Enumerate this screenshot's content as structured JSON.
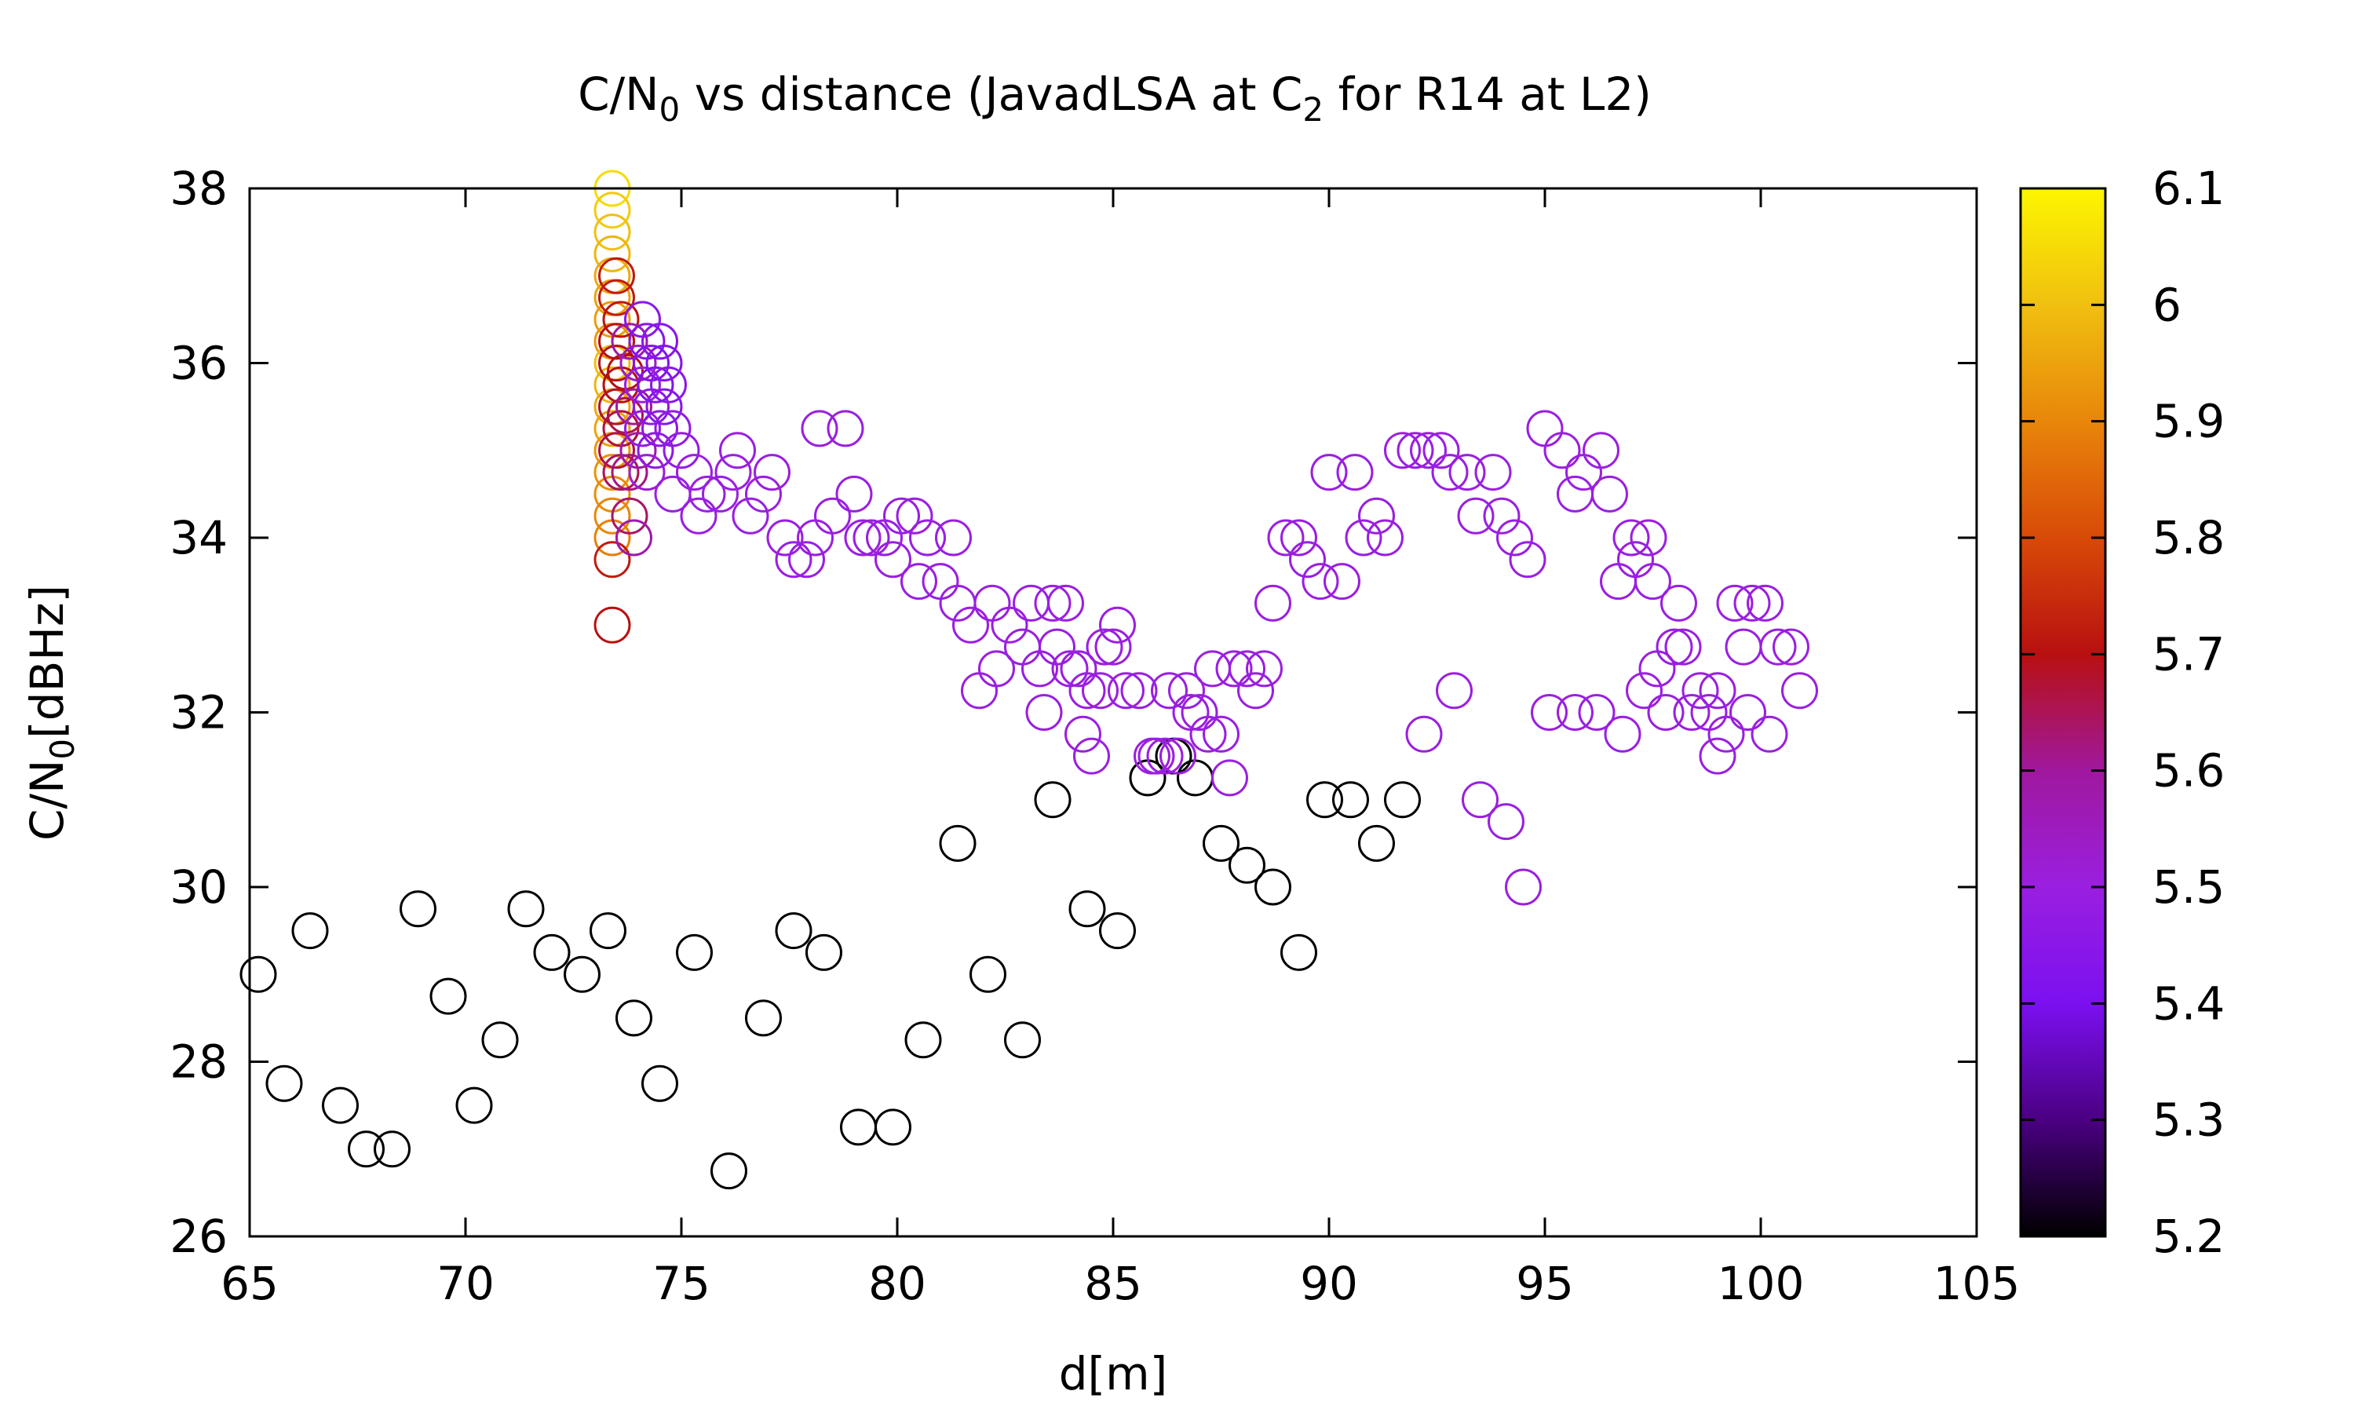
{
  "chart_data": {
    "type": "scatter",
    "title": {
      "main": "C/N",
      "sub1": "0",
      "mid": " vs distance (JavadLSA at C",
      "sub2": "2",
      "tail": " for R14 at L2)"
    },
    "xlabel": "d[m]",
    "ylabel": {
      "main": "C/N",
      "sub": "0",
      "tail": "[dBHz]"
    },
    "xlim": [
      65,
      105
    ],
    "ylim": [
      26,
      38
    ],
    "xticks": [
      "65",
      "70",
      "75",
      "80",
      "85",
      "90",
      "95",
      "100",
      "105"
    ],
    "yticks": [
      "26",
      "28",
      "30",
      "32",
      "34",
      "36",
      "38"
    ],
    "colorbar": {
      "range": [
        5.2,
        6.1
      ],
      "ticks": [
        "5.2",
        "5.3",
        "5.4",
        "5.5",
        "5.6",
        "5.7",
        "5.8",
        "5.9",
        "6",
        "6.1"
      ],
      "palette": [
        "#000000",
        "#4b0082",
        "#7b10f0",
        "#9a1fe0",
        "#a0189e",
        "#b81010",
        "#d84a08",
        "#e8860a",
        "#f0c010",
        "#fdf600"
      ]
    },
    "grid": false,
    "legend": "none",
    "points": [
      [
        65.2,
        29.0,
        5.2
      ],
      [
        65.8,
        27.75,
        5.2
      ],
      [
        66.4,
        29.5,
        5.2
      ],
      [
        67.1,
        27.5,
        5.2
      ],
      [
        67.7,
        27.0,
        5.2
      ],
      [
        68.3,
        27.0,
        5.2
      ],
      [
        68.9,
        29.75,
        5.2
      ],
      [
        69.6,
        28.75,
        5.2
      ],
      [
        70.2,
        27.5,
        5.2
      ],
      [
        70.8,
        28.25,
        5.2
      ],
      [
        71.4,
        29.75,
        5.2
      ],
      [
        72.0,
        29.25,
        5.2
      ],
      [
        72.7,
        29.0,
        5.2
      ],
      [
        73.3,
        29.5,
        5.2
      ],
      [
        73.9,
        28.5,
        5.2
      ],
      [
        74.5,
        27.75,
        5.2
      ],
      [
        75.3,
        29.25,
        5.2
      ],
      [
        76.1,
        26.75,
        5.2
      ],
      [
        76.9,
        28.5,
        5.2
      ],
      [
        77.6,
        29.5,
        5.2
      ],
      [
        78.3,
        29.25,
        5.2
      ],
      [
        79.1,
        27.25,
        5.2
      ],
      [
        79.9,
        27.25,
        5.2
      ],
      [
        80.6,
        28.25,
        5.2
      ],
      [
        81.4,
        30.5,
        5.2
      ],
      [
        82.1,
        29.0,
        5.2
      ],
      [
        82.9,
        28.25,
        5.2
      ],
      [
        83.6,
        31.0,
        5.2
      ],
      [
        84.4,
        29.75,
        5.2
      ],
      [
        85.1,
        29.5,
        5.2
      ],
      [
        85.8,
        31.25,
        5.2
      ],
      [
        86.4,
        31.5,
        5.2
      ],
      [
        86.9,
        31.25,
        5.2
      ],
      [
        87.5,
        30.5,
        5.2
      ],
      [
        88.1,
        30.25,
        5.2
      ],
      [
        88.7,
        30.0,
        5.2
      ],
      [
        89.3,
        29.25,
        5.2
      ],
      [
        89.9,
        31.0,
        5.2
      ],
      [
        90.5,
        31.0,
        5.2
      ],
      [
        91.1,
        30.5,
        5.2
      ],
      [
        91.7,
        31.0,
        5.2
      ],
      [
        73.4,
        38.0,
        6.05
      ],
      [
        73.4,
        37.75,
        6.02
      ],
      [
        73.4,
        37.5,
        6.0
      ],
      [
        73.4,
        37.25,
        5.98
      ],
      [
        73.4,
        37.0,
        5.96
      ],
      [
        73.4,
        36.75,
        5.95
      ],
      [
        73.4,
        36.5,
        5.94
      ],
      [
        73.4,
        36.25,
        5.93
      ],
      [
        73.4,
        36.0,
        6.0
      ],
      [
        73.4,
        35.75,
        5.98
      ],
      [
        73.4,
        35.5,
        5.96
      ],
      [
        73.4,
        35.25,
        5.95
      ],
      [
        73.4,
        35.0,
        5.93
      ],
      [
        73.4,
        34.75,
        5.92
      ],
      [
        73.4,
        34.5,
        5.91
      ],
      [
        73.4,
        34.25,
        5.9
      ],
      [
        73.4,
        34.0,
        5.89
      ],
      [
        73.4,
        33.75,
        5.72
      ],
      [
        73.4,
        33.0,
        5.7
      ],
      [
        73.5,
        37.0,
        5.72
      ],
      [
        73.5,
        36.75,
        5.72
      ],
      [
        73.6,
        36.5,
        5.71
      ],
      [
        73.5,
        36.25,
        5.7
      ],
      [
        73.5,
        36.0,
        5.69
      ],
      [
        73.6,
        35.75,
        5.7
      ],
      [
        73.5,
        35.5,
        5.68
      ],
      [
        73.6,
        35.25,
        5.67
      ],
      [
        73.5,
        35.0,
        5.66
      ],
      [
        73.6,
        34.75,
        5.65
      ],
      [
        73.7,
        35.9,
        5.7
      ],
      [
        73.7,
        35.4,
        5.66
      ],
      [
        73.8,
        34.75,
        5.62
      ],
      [
        73.8,
        34.25,
        5.64
      ],
      [
        73.8,
        36.25,
        5.58
      ],
      [
        73.9,
        34.0,
        5.58
      ],
      [
        73.9,
        35.5,
        5.6
      ],
      [
        74.0,
        35.0,
        5.58
      ],
      [
        74.0,
        36.0,
        5.55
      ],
      [
        74.1,
        35.75,
        5.5
      ],
      [
        74.1,
        36.5,
        5.45
      ],
      [
        74.1,
        35.25,
        5.48
      ],
      [
        74.2,
        34.75,
        5.52
      ],
      [
        74.2,
        36.25,
        5.44
      ],
      [
        74.3,
        35.5,
        5.46
      ],
      [
        74.3,
        36.0,
        5.43
      ],
      [
        74.4,
        35.0,
        5.46
      ],
      [
        74.4,
        35.75,
        5.42
      ],
      [
        74.5,
        36.25,
        5.44
      ],
      [
        74.5,
        35.25,
        5.45
      ],
      [
        74.6,
        36.0,
        5.43
      ],
      [
        74.6,
        35.5,
        5.44
      ],
      [
        74.7,
        35.75,
        5.45
      ],
      [
        74.8,
        35.25,
        5.47
      ],
      [
        75.0,
        35.0,
        5.48
      ],
      [
        74.8,
        34.5,
        5.49
      ],
      [
        75.3,
        34.75,
        5.5
      ],
      [
        75.4,
        34.25,
        5.5
      ],
      [
        75.6,
        34.5,
        5.5
      ],
      [
        75.9,
        34.5,
        5.5
      ],
      [
        76.2,
        34.75,
        5.5
      ],
      [
        76.3,
        35.0,
        5.5
      ],
      [
        76.6,
        34.25,
        5.5
      ],
      [
        76.9,
        34.5,
        5.5
      ],
      [
        77.1,
        34.75,
        5.5
      ],
      [
        77.4,
        34.0,
        5.5
      ],
      [
        77.6,
        33.75,
        5.5
      ],
      [
        77.9,
        33.75,
        5.5
      ],
      [
        78.1,
        34.0,
        5.5
      ],
      [
        78.2,
        35.25,
        5.5
      ],
      [
        78.5,
        34.25,
        5.5
      ],
      [
        78.8,
        35.25,
        5.5
      ],
      [
        79.0,
        34.5,
        5.5
      ],
      [
        79.2,
        34.0,
        5.5
      ],
      [
        79.4,
        34.0,
        5.5
      ],
      [
        79.7,
        34.0,
        5.5
      ],
      [
        79.9,
        33.75,
        5.5
      ],
      [
        80.1,
        34.25,
        5.5
      ],
      [
        80.4,
        34.25,
        5.5
      ],
      [
        80.5,
        33.5,
        5.5
      ],
      [
        80.7,
        34.0,
        5.5
      ],
      [
        81.0,
        33.5,
        5.5
      ],
      [
        81.3,
        34.0,
        5.5
      ],
      [
        81.4,
        33.25,
        5.5
      ],
      [
        81.7,
        33.0,
        5.5
      ],
      [
        81.9,
        32.25,
        5.5
      ],
      [
        82.2,
        33.25,
        5.5
      ],
      [
        82.3,
        32.5,
        5.5
      ],
      [
        82.6,
        33.0,
        5.5
      ],
      [
        82.9,
        32.75,
        5.5
      ],
      [
        83.1,
        33.25,
        5.5
      ],
      [
        83.3,
        32.5,
        5.5
      ],
      [
        83.4,
        32.0,
        5.5
      ],
      [
        83.6,
        33.25,
        5.5
      ],
      [
        83.7,
        32.75,
        5.5
      ],
      [
        83.9,
        33.25,
        5.5
      ],
      [
        84.0,
        32.5,
        5.5
      ],
      [
        84.2,
        32.5,
        5.5
      ],
      [
        84.3,
        31.75,
        5.5
      ],
      [
        84.4,
        32.25,
        5.5
      ],
      [
        84.5,
        31.5,
        5.5
      ],
      [
        84.7,
        32.25,
        5.5
      ],
      [
        84.8,
        32.75,
        5.5
      ],
      [
        85.0,
        32.75,
        5.5
      ],
      [
        85.1,
        33.0,
        5.5
      ],
      [
        85.3,
        32.25,
        5.5
      ],
      [
        85.6,
        32.25,
        5.5
      ],
      [
        85.9,
        31.5,
        5.5
      ],
      [
        86.0,
        31.5,
        5.5
      ],
      [
        86.2,
        31.5,
        5.5
      ],
      [
        86.3,
        32.25,
        5.5
      ],
      [
        86.5,
        31.5,
        5.5
      ],
      [
        86.7,
        32.25,
        5.5
      ],
      [
        86.8,
        32.0,
        5.5
      ],
      [
        87.0,
        32.0,
        5.5
      ],
      [
        87.2,
        31.75,
        5.5
      ],
      [
        87.3,
        32.5,
        5.5
      ],
      [
        87.5,
        31.75,
        5.5
      ],
      [
        87.7,
        31.25,
        5.5
      ],
      [
        87.8,
        32.5,
        5.5
      ],
      [
        88.1,
        32.5,
        5.5
      ],
      [
        88.3,
        32.25,
        5.5
      ],
      [
        88.5,
        32.5,
        5.5
      ],
      [
        88.7,
        33.25,
        5.5
      ],
      [
        89.0,
        34.0,
        5.5
      ],
      [
        89.3,
        34.0,
        5.5
      ],
      [
        89.5,
        33.75,
        5.5
      ],
      [
        89.8,
        33.5,
        5.5
      ],
      [
        90.0,
        34.75,
        5.5
      ],
      [
        90.3,
        33.5,
        5.5
      ],
      [
        90.6,
        34.75,
        5.5
      ],
      [
        90.8,
        34.0,
        5.5
      ],
      [
        91.1,
        34.25,
        5.5
      ],
      [
        91.3,
        34.0,
        5.5
      ],
      [
        91.7,
        35.0,
        5.5
      ],
      [
        92.0,
        35.0,
        5.5
      ],
      [
        92.2,
        31.75,
        5.5
      ],
      [
        92.3,
        35.0,
        5.5
      ],
      [
        92.6,
        35.0,
        5.5
      ],
      [
        92.8,
        34.75,
        5.5
      ],
      [
        92.9,
        32.25,
        5.5
      ],
      [
        93.2,
        34.75,
        5.5
      ],
      [
        93.4,
        34.25,
        5.5
      ],
      [
        93.5,
        31.0,
        5.5
      ],
      [
        93.8,
        34.75,
        5.5
      ],
      [
        94.0,
        34.25,
        5.5
      ],
      [
        94.1,
        30.75,
        5.5
      ],
      [
        94.3,
        34.0,
        5.5
      ],
      [
        94.6,
        33.75,
        5.5
      ],
      [
        94.5,
        30.0,
        5.5
      ],
      [
        95.0,
        35.25,
        5.5
      ],
      [
        95.1,
        32.0,
        5.5
      ],
      [
        95.4,
        35.0,
        5.5
      ],
      [
        95.7,
        34.5,
        5.5
      ],
      [
        95.7,
        32.0,
        5.5
      ],
      [
        95.9,
        34.75,
        5.5
      ],
      [
        96.2,
        32.0,
        5.5
      ],
      [
        96.3,
        35.0,
        5.5
      ],
      [
        96.5,
        34.5,
        5.5
      ],
      [
        96.7,
        33.5,
        5.5
      ],
      [
        96.8,
        31.75,
        5.5
      ],
      [
        97.0,
        34.0,
        5.5
      ],
      [
        97.1,
        33.75,
        5.5
      ],
      [
        97.3,
        32.25,
        5.5
      ],
      [
        97.4,
        34.0,
        5.5
      ],
      [
        97.5,
        33.5,
        5.5
      ],
      [
        97.6,
        32.5,
        5.5
      ],
      [
        97.8,
        32.0,
        5.5
      ],
      [
        98.0,
        32.75,
        5.5
      ],
      [
        98.1,
        33.25,
        5.5
      ],
      [
        98.2,
        32.75,
        5.5
      ],
      [
        98.4,
        32.0,
        5.5
      ],
      [
        98.6,
        32.25,
        5.5
      ],
      [
        98.8,
        32.0,
        5.5
      ],
      [
        99.0,
        32.25,
        5.5
      ],
      [
        99.0,
        31.5,
        5.5
      ],
      [
        99.2,
        31.75,
        5.5
      ],
      [
        99.4,
        33.25,
        5.5
      ],
      [
        99.6,
        32.75,
        5.5
      ],
      [
        99.7,
        32.0,
        5.5
      ],
      [
        99.8,
        33.25,
        5.5
      ],
      [
        100.1,
        33.25,
        5.5
      ],
      [
        100.2,
        31.75,
        5.5
      ],
      [
        100.4,
        32.75,
        5.5
      ],
      [
        100.7,
        32.75,
        5.5
      ],
      [
        100.9,
        32.25,
        5.5
      ]
    ]
  }
}
